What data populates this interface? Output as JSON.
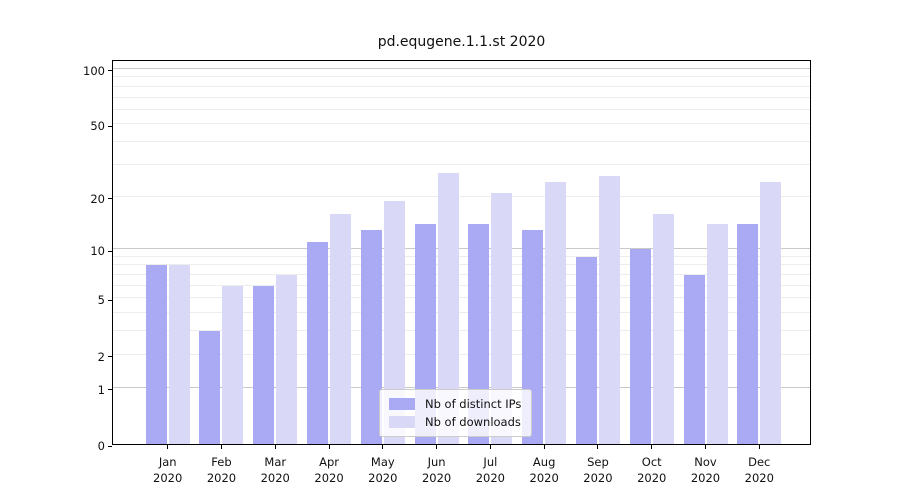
{
  "title": "pd.equgene.1.1.st 2020",
  "legend": {
    "items": [
      {
        "label": "Nb of distinct IPs",
        "color": "#a9a9f4"
      },
      {
        "label": "Nb of downloads",
        "color": "#d9d9f7"
      }
    ],
    "position": "lower center"
  },
  "y_axis": {
    "tick_labels": [
      "100",
      "50",
      "20",
      "10",
      "5",
      "2",
      "1",
      "0"
    ]
  },
  "x_axis": {
    "year": "2020",
    "months": [
      "Jan",
      "Feb",
      "Mar",
      "Apr",
      "May",
      "Jun",
      "Jul",
      "Aug",
      "Sep",
      "Oct",
      "Nov",
      "Dec"
    ]
  },
  "chart_data": {
    "type": "bar",
    "title": "pd.equgene.1.1.st 2020",
    "scale": "log1p",
    "categories": [
      "Jan 2020",
      "Feb 2020",
      "Mar 2020",
      "Apr 2020",
      "May 2020",
      "Jun 2020",
      "Jul 2020",
      "Aug 2020",
      "Sep 2020",
      "Oct 2020",
      "Nov 2020",
      "Dec 2020"
    ],
    "series": [
      {
        "name": "Nb of distinct IPs",
        "color": "#a9a9f4",
        "values": [
          8,
          3,
          6,
          11,
          13,
          14,
          14,
          13,
          9,
          10,
          7,
          14
        ]
      },
      {
        "name": "Nb of downloads",
        "color": "#d9d9f7",
        "values": [
          8,
          6,
          7,
          16,
          19,
          27,
          21,
          24,
          26,
          16,
          14,
          24
        ]
      }
    ],
    "xlabel": "",
    "ylabel": "",
    "y_ticks": [
      0,
      1,
      2,
      5,
      10,
      20,
      50,
      100
    ],
    "major_gridlines": [
      1,
      10,
      100
    ],
    "minor_gridlines": [
      2,
      3,
      4,
      5,
      6,
      7,
      8,
      9,
      20,
      30,
      40,
      50,
      60,
      70,
      80,
      90
    ],
    "ylim": [
      0,
      113
    ],
    "grid": true,
    "legend_position": "lower center"
  },
  "colors": {
    "bar_distinct_ips": "#a9a9f4",
    "bar_downloads": "#d9d9f7",
    "grid_major": "#c9c9c9",
    "grid_minor": "#ededed",
    "axis": "#000000",
    "background": "#ffffff"
  }
}
